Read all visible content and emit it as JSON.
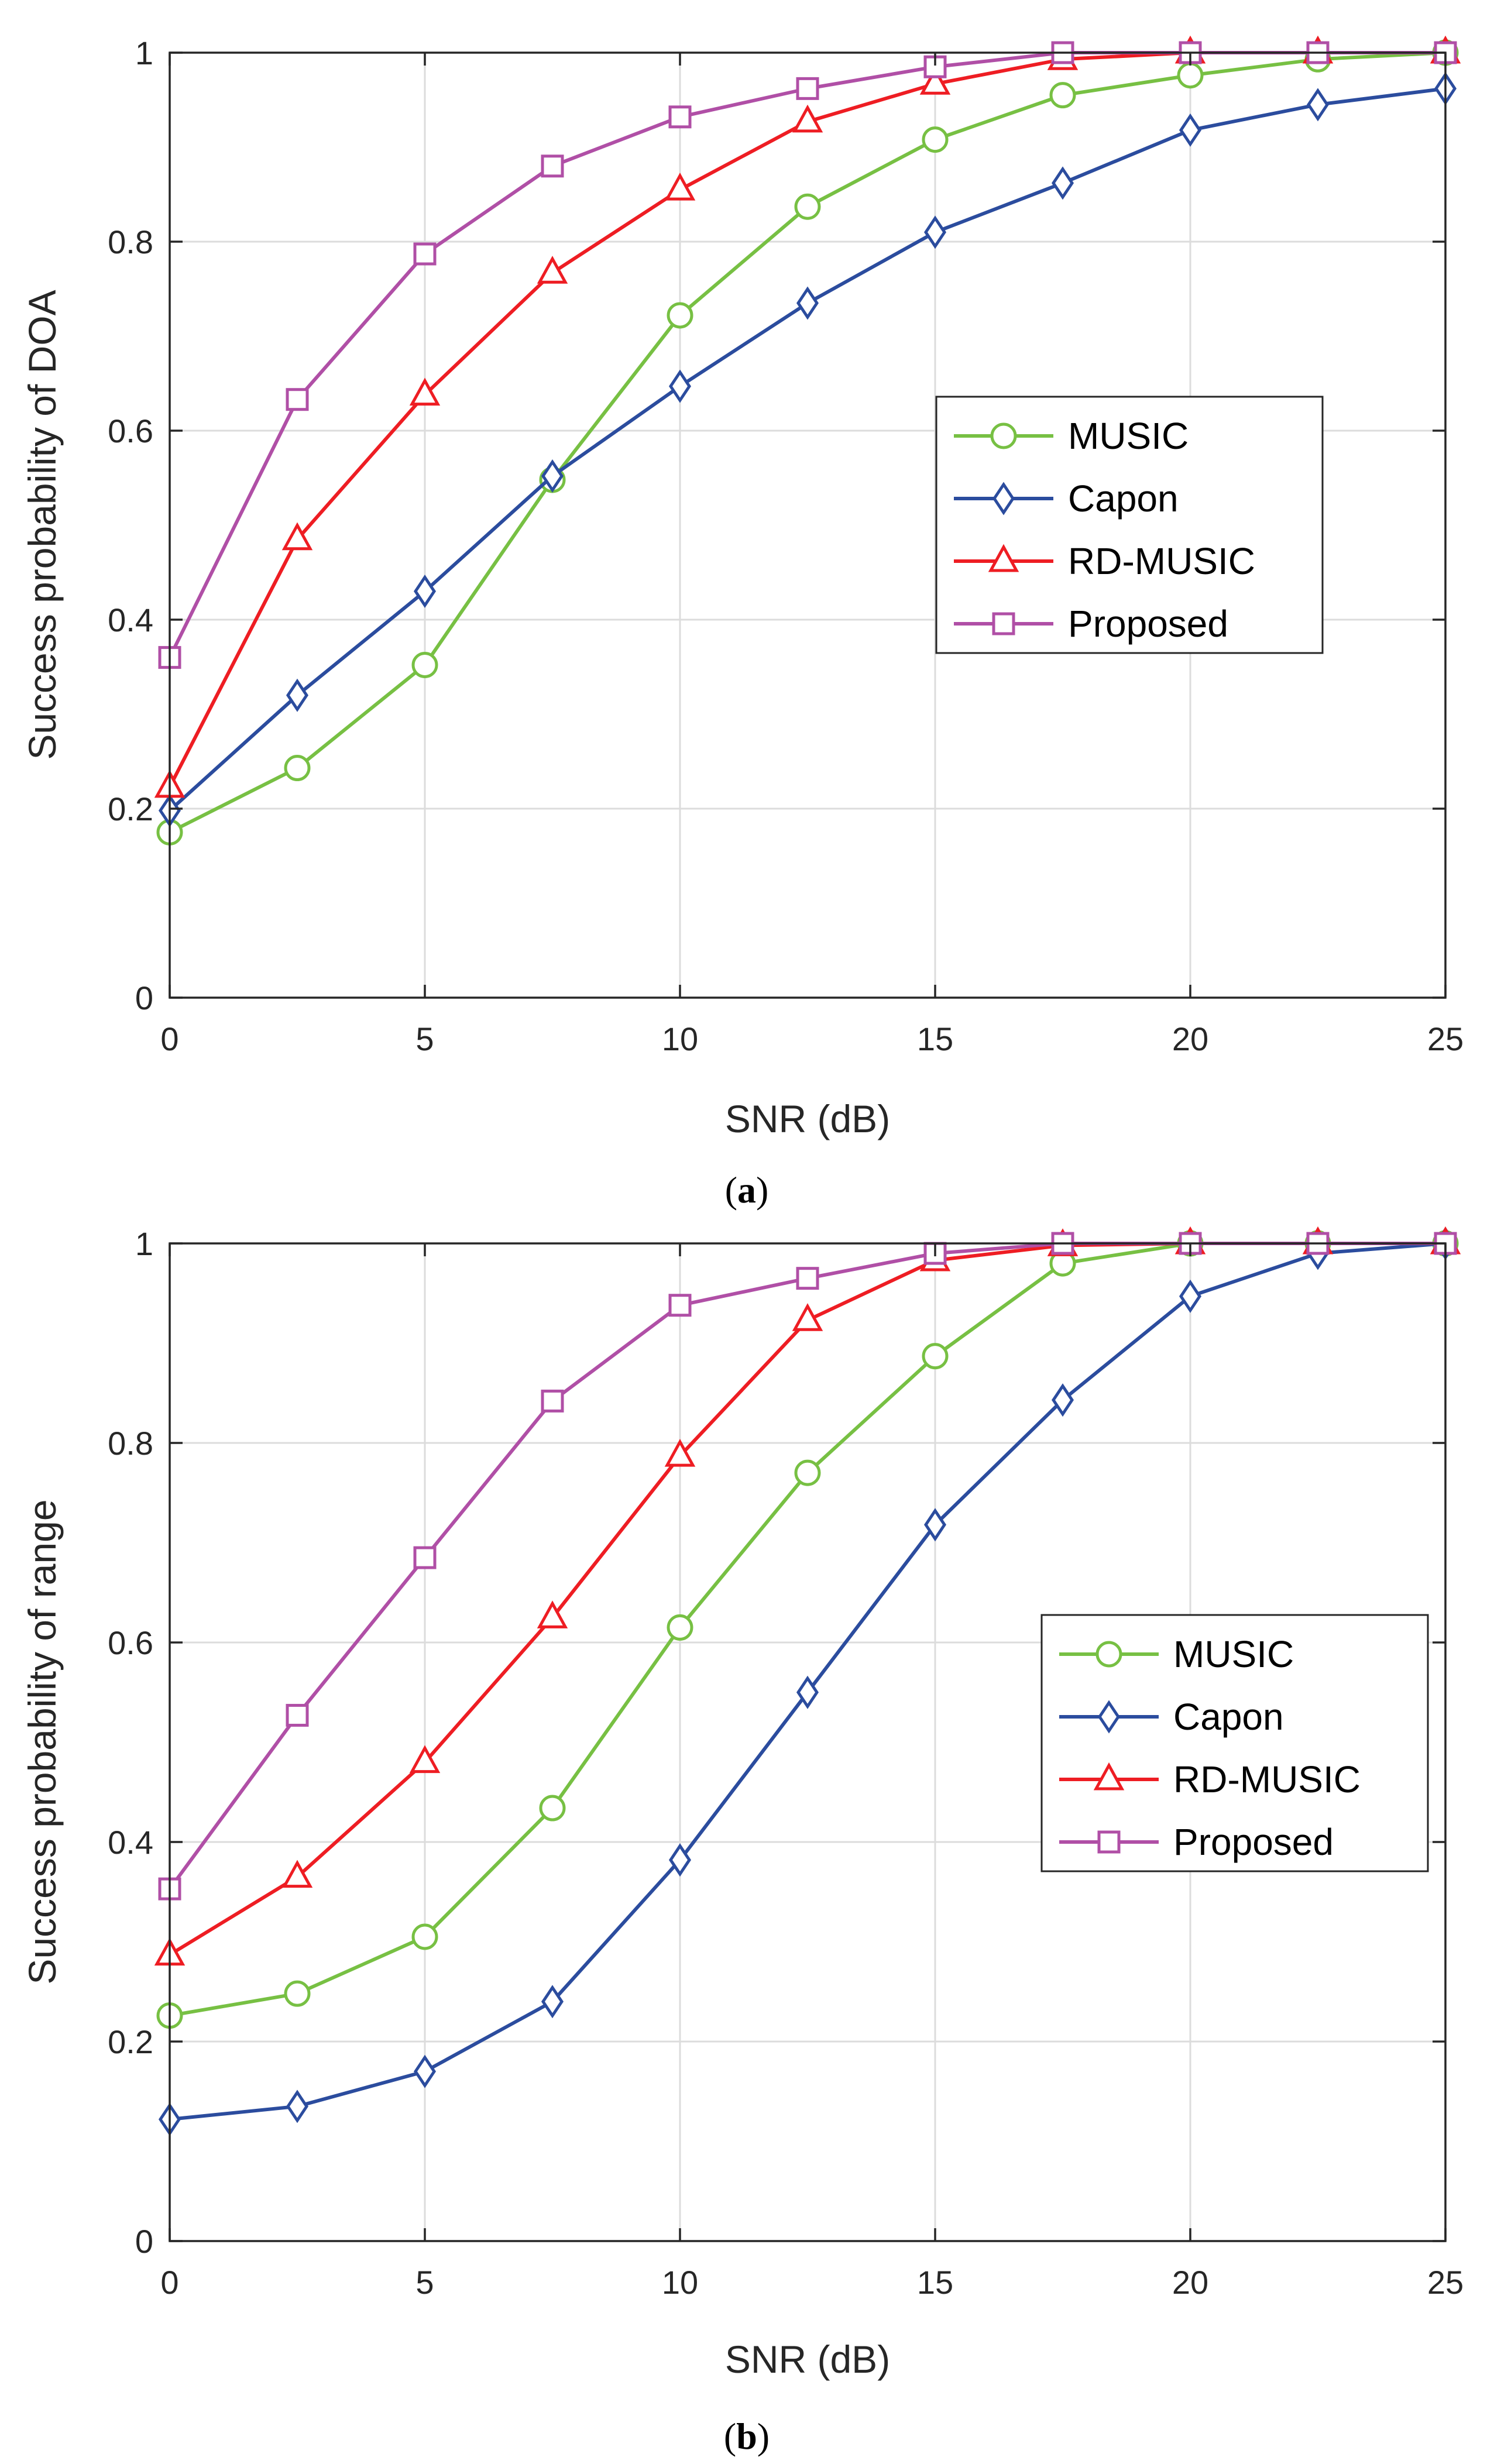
{
  "chart_data": [
    {
      "type": "line",
      "panel": "a",
      "caption": "(a)",
      "caption_letter": "a",
      "xlabel": "SNR (dB)",
      "ylabel": "Success probability of DOA",
      "xlim": [
        0,
        25
      ],
      "ylim": [
        0,
        1
      ],
      "xticks": [
        0,
        5,
        10,
        15,
        20,
        25
      ],
      "yticks": [
        0,
        0.2,
        0.4,
        0.6,
        0.8,
        1
      ],
      "xticklabels": [
        "0",
        "5",
        "10",
        "15",
        "20",
        "25"
      ],
      "yticklabels": [
        "0",
        "0.2",
        "0.4",
        "0.6",
        "0.8",
        "1"
      ],
      "grid": true,
      "legend_position": "center-right",
      "x": [
        0,
        2.5,
        5,
        7.5,
        10,
        12.5,
        15,
        17.5,
        20,
        22.5,
        25
      ],
      "series": [
        {
          "name": "MUSIC",
          "color": "#77C043",
          "marker": "circle",
          "values": [
            0.175,
            0.243,
            0.352,
            0.548,
            0.722,
            0.837,
            0.908,
            0.955,
            0.976,
            0.993,
            1.0
          ]
        },
        {
          "name": "Capon",
          "color": "#2B4C9E",
          "marker": "diamond",
          "values": [
            0.198,
            0.32,
            0.43,
            0.552,
            0.647,
            0.735,
            0.81,
            0.862,
            0.918,
            0.945,
            0.962
          ]
        },
        {
          "name": "RD-MUSIC",
          "color": "#EE1D23",
          "marker": "triangle",
          "values": [
            0.223,
            0.485,
            0.638,
            0.767,
            0.855,
            0.927,
            0.967,
            0.993,
            1.0,
            1.0,
            1.0
          ]
        },
        {
          "name": "Proposed",
          "color": "#B04FA6",
          "marker": "square",
          "values": [
            0.36,
            0.633,
            0.787,
            0.88,
            0.932,
            0.962,
            0.985,
            1.0,
            1.0,
            1.0,
            1.0
          ]
        }
      ]
    },
    {
      "type": "line",
      "panel": "b",
      "caption": "(b)",
      "caption_letter": "b",
      "xlabel": "SNR (dB)",
      "ylabel": "Success probability of range",
      "xlim": [
        0,
        25
      ],
      "ylim": [
        0,
        1
      ],
      "xticks": [
        0,
        5,
        10,
        15,
        20,
        25
      ],
      "yticks": [
        0,
        0.2,
        0.4,
        0.6,
        0.8,
        1
      ],
      "xticklabels": [
        "0",
        "5",
        "10",
        "15",
        "20",
        "25"
      ],
      "yticklabels": [
        "0",
        "0.2",
        "0.4",
        "0.6",
        "0.8",
        "1"
      ],
      "grid": true,
      "legend_position": "center-right",
      "x": [
        0,
        2.5,
        5,
        7.5,
        10,
        12.5,
        15,
        17.5,
        20,
        22.5,
        25
      ],
      "series": [
        {
          "name": "MUSIC",
          "color": "#77C043",
          "marker": "circle",
          "values": [
            0.226,
            0.248,
            0.305,
            0.434,
            0.615,
            0.77,
            0.887,
            0.98,
            1.0,
            1.0,
            1.0
          ]
        },
        {
          "name": "Capon",
          "color": "#2B4C9E",
          "marker": "diamond",
          "values": [
            0.122,
            0.135,
            0.17,
            0.24,
            0.382,
            0.55,
            0.718,
            0.843,
            0.947,
            0.99,
            1.0
          ]
        },
        {
          "name": "RD-MUSIC",
          "color": "#EE1D23",
          "marker": "triangle",
          "values": [
            0.287,
            0.365,
            0.48,
            0.625,
            0.787,
            0.923,
            0.983,
            0.998,
            1.0,
            1.0,
            1.0
          ]
        },
        {
          "name": "Proposed",
          "color": "#B04FA6",
          "marker": "square",
          "values": [
            0.353,
            0.527,
            0.685,
            0.842,
            0.938,
            0.965,
            0.99,
            1.0,
            1.0,
            1.0,
            1.0
          ]
        }
      ]
    }
  ]
}
